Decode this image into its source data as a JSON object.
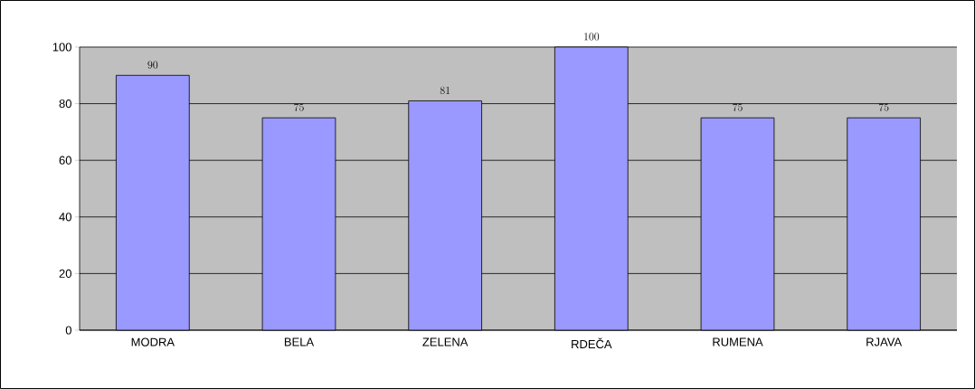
{
  "chart_data": {
    "type": "bar",
    "categories": [
      "MODRA",
      "BELA",
      "ZELENA",
      "RDEČA",
      "RUMENA",
      "RJAVA"
    ],
    "values": [
      90,
      75,
      81,
      100,
      75,
      75
    ],
    "color": "#9999ff",
    "ylim": [
      0,
      100
    ],
    "yticks": [
      0,
      20,
      40,
      60,
      80,
      100
    ],
    "grid": "y",
    "data_labels": true
  }
}
